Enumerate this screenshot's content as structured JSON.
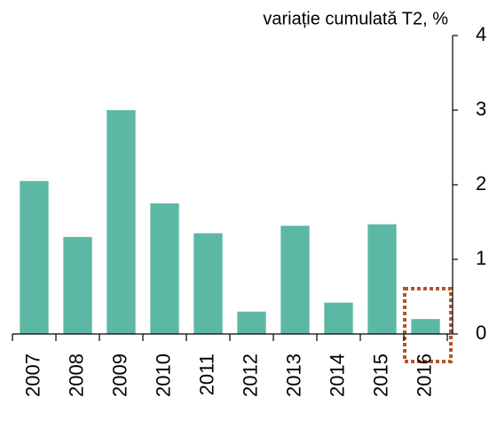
{
  "chart_data": {
    "type": "bar",
    "title": "variație cumulată T2, %",
    "categories": [
      "2007",
      "2008",
      "2009",
      "2010",
      "2011",
      "2012",
      "2013",
      "2014",
      "2015",
      "2016"
    ],
    "values": [
      2.05,
      1.3,
      3.0,
      1.75,
      1.35,
      0.3,
      1.45,
      0.42,
      1.47,
      0.2
    ],
    "color": "#5cb8a5",
    "ylim": [
      0,
      4
    ],
    "yticks": [
      0,
      1,
      2,
      3,
      4
    ],
    "y_axis_side": "right",
    "grid": false
  }
}
